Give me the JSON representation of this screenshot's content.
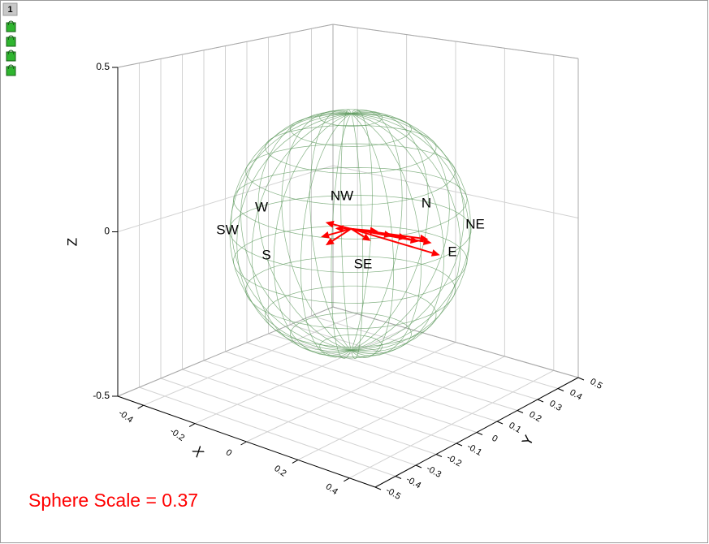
{
  "window": {
    "tab": "1"
  },
  "chart_data": {
    "type": "vector3d",
    "x_label": "X",
    "y_label": "Y",
    "z_label": "Z",
    "xlim": [
      -0.5,
      0.5
    ],
    "ylim": [
      -0.5,
      0.5
    ],
    "zlim": [
      -0.5,
      0.5
    ],
    "xticks": [
      -0.4,
      -0.2,
      0,
      0.2,
      0.4
    ],
    "yticks": [
      -0.5,
      -0.4,
      -0.3,
      -0.2,
      -0.1,
      0,
      0.1,
      0.2,
      0.3,
      0.4,
      0.5
    ],
    "zticks": [
      -0.5,
      0,
      0.5
    ],
    "grid": true,
    "compass_labels": [
      "NW",
      "N",
      "NE",
      "E",
      "SE",
      "S",
      "SW",
      "W"
    ],
    "sphere_scale": {
      "value": 0.37,
      "label": "Sphere Scale = 0.37"
    },
    "sphere_color": "#5e9a5e",
    "vector_color": "#ff0000",
    "vectors": {
      "x": [
        0,
        0,
        0,
        0,
        0,
        0,
        0,
        0,
        0,
        0,
        0,
        0
      ],
      "y": [
        0,
        0,
        0,
        0,
        0,
        0,
        0,
        0,
        0,
        0,
        0,
        0
      ],
      "z": [
        0.01,
        0.01,
        0.01,
        0.01,
        0.01,
        0.01,
        0.01,
        0.01,
        0.01,
        0.01,
        0.01,
        0.01
      ],
      "u": [
        0.37,
        0.28,
        0.25,
        0.19,
        0.14,
        0.12,
        -0.06,
        -0.02,
        0.04,
        0.02,
        0.1,
        0.22
      ],
      "v": [
        -0.02,
        0.05,
        0.07,
        0.04,
        0.03,
        -0.05,
        -0.05,
        -0.12,
        -0.17,
        -0.1,
        0.01,
        0.06
      ],
      "w": [
        0,
        0,
        0,
        0,
        0,
        0,
        0.02,
        0,
        0,
        0.03,
        0.01,
        -0.01
      ]
    }
  }
}
